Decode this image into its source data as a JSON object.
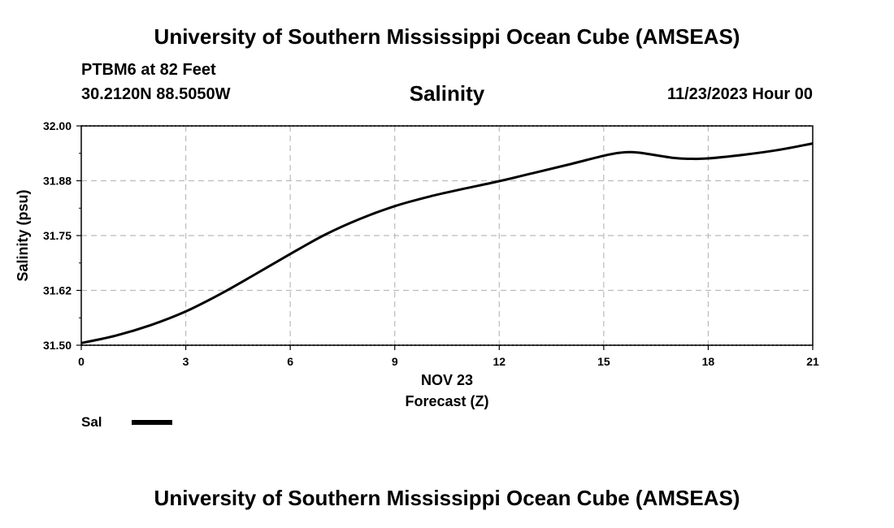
{
  "header": {
    "title_top": "University of Southern Mississippi Ocean Cube (AMSEAS)",
    "station": "PTBM6 at 82 Feet",
    "coords": "30.2120N  88.5050W",
    "run_time": "11/23/2023 Hour 00",
    "title_bottom": "University of Southern Mississippi Ocean Cube (AMSEAS)"
  },
  "legend": {
    "label": "Sal",
    "color": "#000000"
  },
  "chart_data": {
    "type": "line",
    "title": "Salinity",
    "xlabel": "Forecast (Z)",
    "xlabel_date": "NOV 23",
    "ylabel": "Salinity (psu)",
    "xlim": [
      0,
      21
    ],
    "ylim": [
      31.5,
      32.0
    ],
    "xticks": [
      0,
      3,
      6,
      9,
      12,
      15,
      18,
      21
    ],
    "yticks": [
      31.5,
      31.625,
      31.75,
      31.875,
      32.0
    ],
    "ytick_labels": [
      "31.50",
      "31.62",
      "31.75",
      "31.88",
      "32.00"
    ],
    "grid": true,
    "series": [
      {
        "name": "Sal",
        "color": "#000000",
        "x": [
          0,
          1,
          2,
          3,
          4,
          5,
          6,
          7,
          8,
          9,
          10,
          11,
          12,
          13,
          14,
          15,
          15.5,
          16,
          17,
          17.5,
          18,
          19,
          20,
          21
        ],
        "values": [
          31.505,
          31.522,
          31.546,
          31.577,
          31.617,
          31.662,
          31.708,
          31.752,
          31.788,
          31.817,
          31.839,
          31.857,
          31.874,
          31.893,
          31.912,
          31.932,
          31.939,
          31.939,
          31.927,
          31.925,
          31.926,
          31.934,
          31.945,
          31.96
        ]
      }
    ]
  }
}
